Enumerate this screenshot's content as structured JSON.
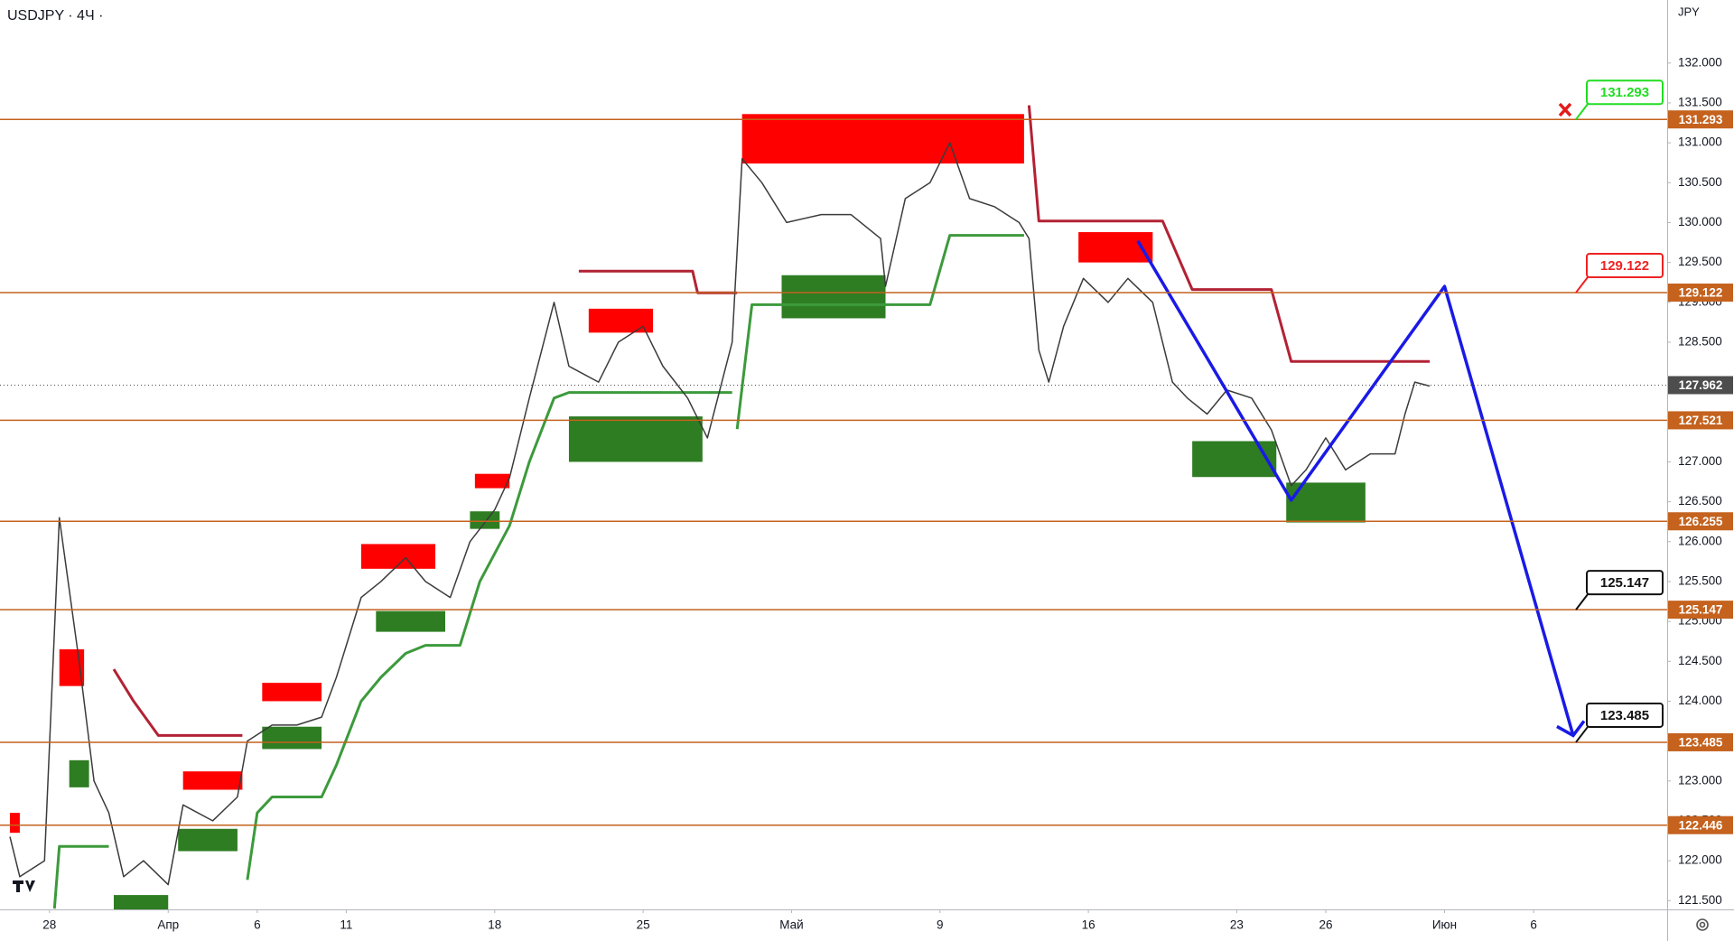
{
  "chart_data": {
    "type": "line",
    "title": "USDJPY · 4Ч ·",
    "currency": "JPY",
    "grid": false,
    "xlim": [
      0,
      337
    ],
    "ylim": [
      121.39,
      132.79
    ],
    "xticks": [
      {
        "value": 10,
        "label": "28"
      },
      {
        "value": 34,
        "label": "Апр"
      },
      {
        "value": 52,
        "label": "6"
      },
      {
        "value": 70,
        "label": "11"
      },
      {
        "value": 100,
        "label": "18"
      },
      {
        "value": 130,
        "label": "25"
      },
      {
        "value": 160,
        "label": "Май"
      },
      {
        "value": 190,
        "label": "9"
      },
      {
        "value": 220,
        "label": "16"
      },
      {
        "value": 250,
        "label": "23"
      },
      {
        "value": 268,
        "label": "26"
      },
      {
        "value": 292,
        "label": "Июн"
      },
      {
        "value": 310,
        "label": "6"
      }
    ],
    "yticks": [
      {
        "value": 121.5,
        "label": "121.500"
      },
      {
        "value": 122,
        "label": "122.000"
      },
      {
        "value": 122.5,
        "label": "122.500"
      },
      {
        "value": 123,
        "label": "123.000"
      },
      {
        "value": 123.5,
        "label": "123.500"
      },
      {
        "value": 124,
        "label": "124.000"
      },
      {
        "value": 124.5,
        "label": "124.500"
      },
      {
        "value": 125,
        "label": "125.000"
      },
      {
        "value": 125.5,
        "label": "125.500"
      },
      {
        "value": 126,
        "label": "126.000"
      },
      {
        "value": 126.5,
        "label": "126.500"
      },
      {
        "value": 127,
        "label": "127.000"
      },
      {
        "value": 127.5,
        "label": "127.500"
      },
      {
        "value": 128,
        "label": "128.000"
      },
      {
        "value": 128.5,
        "label": "128.500"
      },
      {
        "value": 129,
        "label": "129.000"
      },
      {
        "value": 129.5,
        "label": "129.500"
      },
      {
        "value": 130,
        "label": "130.000"
      },
      {
        "value": 130.5,
        "label": "130.500"
      },
      {
        "value": 131,
        "label": "131.000"
      },
      {
        "value": 131.5,
        "label": "131.500"
      },
      {
        "value": 132,
        "label": "132.000"
      }
    ],
    "price": {
      "color": "#3b3b3b",
      "x": [
        2,
        4,
        9,
        12,
        16,
        19,
        22,
        25,
        29,
        34,
        37,
        43,
        48,
        50,
        55,
        60,
        65,
        68,
        73,
        77,
        82,
        86,
        91,
        95,
        100,
        103,
        107,
        112,
        115,
        121,
        125,
        130,
        134,
        139,
        143,
        148,
        150,
        154,
        159,
        166,
        172,
        178,
        179,
        183,
        188,
        192,
        196,
        201,
        206,
        208,
        210,
        212,
        215,
        219,
        224,
        228,
        233,
        237,
        240,
        244,
        248,
        253,
        257,
        261,
        264,
        268,
        272,
        277,
        282,
        284,
        286,
        289
      ],
      "values": [
        122.3,
        121.8,
        122.0,
        126.3,
        124.5,
        123.0,
        122.6,
        121.8,
        122.0,
        121.7,
        122.7,
        122.5,
        122.8,
        123.5,
        123.7,
        123.7,
        123.8,
        124.3,
        125.3,
        125.5,
        125.8,
        125.5,
        125.3,
        126.0,
        126.4,
        126.8,
        127.8,
        129.0,
        128.2,
        128.0,
        128.5,
        128.7,
        128.2,
        127.8,
        127.3,
        128.5,
        130.8,
        130.5,
        130.0,
        130.1,
        130.1,
        129.8,
        129.2,
        130.3,
        130.5,
        131.0,
        130.3,
        130.2,
        130.0,
        129.8,
        128.4,
        128.0,
        128.7,
        129.3,
        129.0,
        129.3,
        129.0,
        128.0,
        127.8,
        127.6,
        127.9,
        127.8,
        127.4,
        126.7,
        126.9,
        127.3,
        126.9,
        127.1,
        127.1,
        127.6,
        128.0,
        127.95
      ]
    },
    "support": {
      "color": "#3c9a3c",
      "x": [
        11,
        12,
        22,
        null,
        50,
        52,
        55,
        65,
        68,
        73,
        77,
        82,
        86,
        93,
        97,
        103,
        107,
        112,
        115,
        148,
        null,
        149,
        152,
        188,
        192,
        207
      ],
      "values": [
        121.4,
        122.18,
        122.18,
        null,
        121.76,
        122.6,
        122.8,
        122.8,
        123.2,
        124.0,
        124.3,
        124.6,
        124.7,
        124.7,
        125.5,
        126.2,
        127.0,
        127.8,
        127.87,
        127.87,
        null,
        127.41,
        128.97,
        128.97,
        129.84,
        129.84
      ]
    },
    "resistance": {
      "color": "#b22234",
      "x": [
        23,
        27,
        32,
        49,
        null,
        117,
        140,
        141,
        149,
        null,
        208,
        210,
        235,
        241,
        257,
        261,
        289
      ],
      "values": [
        124.4,
        124.0,
        123.57,
        123.57,
        null,
        129.39,
        129.39,
        129.12,
        129.12,
        null,
        131.47,
        130.02,
        130.02,
        129.16,
        129.16,
        128.26,
        128.26
      ]
    },
    "projection": {
      "color": "#1a1ae6",
      "x": [
        230,
        261,
        292,
        318
      ],
      "values": [
        129.77,
        126.52,
        129.2,
        123.57
      ]
    },
    "zones": [
      {
        "color": "#ff0000",
        "x": [
          150,
          207
        ],
        "values": [
          131.36,
          130.74
        ]
      },
      {
        "color": "#ff0000",
        "x": [
          218,
          233
        ],
        "values": [
          129.88,
          129.5
        ]
      },
      {
        "color": "#ff0000",
        "x": [
          119,
          132
        ],
        "values": [
          128.92,
          128.62
        ]
      },
      {
        "color": "#ff0000",
        "x": [
          73,
          88
        ],
        "values": [
          125.97,
          125.66
        ]
      },
      {
        "color": "#ff0000",
        "x": [
          53,
          65
        ],
        "values": [
          124.23,
          124.0
        ]
      },
      {
        "color": "#ff0000",
        "x": [
          37,
          49
        ],
        "values": [
          123.12,
          122.89
        ]
      },
      {
        "color": "#ff0000",
        "x": [
          12,
          17
        ],
        "values": [
          124.65,
          124.19
        ]
      },
      {
        "color": "#ff0000",
        "x": [
          96,
          103
        ],
        "values": [
          126.85,
          126.67
        ]
      },
      {
        "color": "#ff0000",
        "x": [
          2,
          4
        ],
        "values": [
          122.6,
          122.35
        ]
      },
      {
        "color": "#2e7d22",
        "x": [
          158,
          179
        ],
        "values": [
          129.34,
          128.8
        ]
      },
      {
        "color": "#2e7d22",
        "x": [
          115,
          142
        ],
        "values": [
          127.57,
          127.0
        ]
      },
      {
        "color": "#2e7d22",
        "x": [
          241,
          258
        ],
        "values": [
          127.26,
          126.81
        ]
      },
      {
        "color": "#2e7d22",
        "x": [
          260,
          276
        ],
        "values": [
          126.74,
          126.24
        ]
      },
      {
        "color": "#2e7d22",
        "x": [
          76,
          90
        ],
        "values": [
          125.13,
          124.87
        ]
      },
      {
        "color": "#2e7d22",
        "x": [
          53,
          65
        ],
        "values": [
          123.68,
          123.4
        ]
      },
      {
        "color": "#2e7d22",
        "x": [
          36,
          48
        ],
        "values": [
          122.4,
          122.12
        ]
      },
      {
        "color": "#2e7d22",
        "x": [
          14,
          18
        ],
        "values": [
          123.26,
          122.92
        ]
      },
      {
        "color": "#2e7d22",
        "x": [
          95,
          101
        ],
        "values": [
          126.38,
          126.16
        ]
      },
      {
        "color": "#2e7d22",
        "x": [
          23,
          34
        ],
        "values": [
          121.57,
          121.39
        ]
      }
    ],
    "level_color": "#c4621e",
    "levels": [
      131.293,
      129.122,
      127.521,
      126.255,
      125.147,
      123.485,
      122.446
    ],
    "current_price": {
      "value": 127.962,
      "color": "#4d4d4d"
    },
    "callouts": [
      {
        "level": 0,
        "color": "#22dd22"
      },
      {
        "level": 1,
        "color": "#ee2222"
      },
      {
        "level": 4,
        "color": "#111111"
      },
      {
        "level": 5,
        "color": "#111111"
      }
    ]
  }
}
